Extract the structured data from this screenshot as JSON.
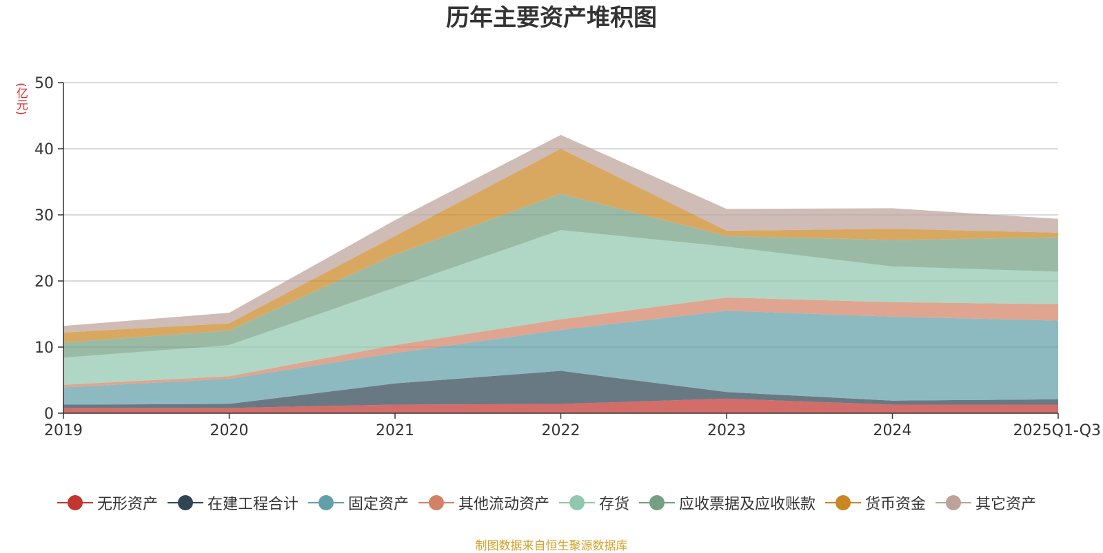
{
  "chart_data": {
    "type": "area",
    "stacked": true,
    "title": "历年主要资产堆积图",
    "ylabel": "(亿元)",
    "xlabel": "",
    "ylim": [
      0,
      50
    ],
    "yticks": [
      0,
      10,
      20,
      30,
      40,
      50
    ],
    "categories": [
      "2019",
      "2020",
      "2021",
      "2022",
      "2023",
      "2024",
      "2025Q1-Q3"
    ],
    "series": [
      {
        "name": "无形资产",
        "color": "#c23531",
        "values": [
          0.8,
          0.8,
          1.3,
          1.4,
          2.2,
          1.3,
          1.3
        ]
      },
      {
        "name": "在建工程合计",
        "color": "#2f4554",
        "values": [
          0.5,
          0.6,
          3.2,
          5.0,
          1.0,
          0.6,
          0.8
        ]
      },
      {
        "name": "固定资产",
        "color": "#61a0a8",
        "values": [
          2.6,
          3.8,
          4.6,
          6.2,
          12.3,
          12.7,
          11.9
        ]
      },
      {
        "name": "其他流动资产",
        "color": "#d48265",
        "values": [
          0.4,
          0.4,
          1.2,
          1.6,
          2.0,
          2.2,
          2.5
        ]
      },
      {
        "name": "存货",
        "color": "#91c7ae",
        "values": [
          4.1,
          4.7,
          8.7,
          13.5,
          7.7,
          5.4,
          4.9
        ]
      },
      {
        "name": "应收票据及应收账款",
        "color": "#749f83",
        "values": [
          2.3,
          2.2,
          5.0,
          5.5,
          1.6,
          4.0,
          5.2
        ]
      },
      {
        "name": "货币资金",
        "color": "#ca8622",
        "values": [
          1.5,
          1.1,
          2.8,
          6.8,
          0.8,
          1.7,
          0.7
        ]
      },
      {
        "name": "其它资产",
        "color": "#bda29a",
        "values": [
          1.0,
          1.6,
          2.4,
          2.1,
          3.3,
          3.1,
          2.1
        ]
      }
    ]
  },
  "source_text": "制图数据来自恒生聚源数据库"
}
